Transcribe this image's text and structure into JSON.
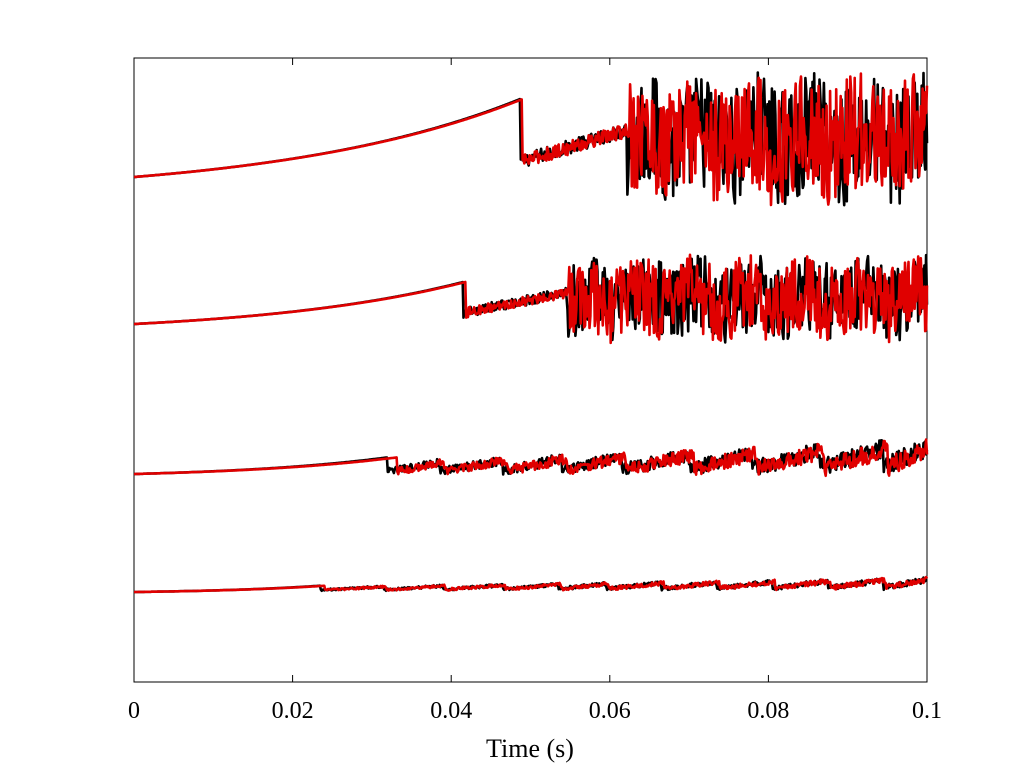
{
  "chart_data": {
    "type": "line",
    "title": "",
    "xlabel": "Time (s)",
    "ylabel": "",
    "xlim": [
      0,
      0.1
    ],
    "xticks": [
      0,
      0.02,
      0.04,
      0.06,
      0.08,
      0.1
    ],
    "xtick_labels": [
      "0",
      "0.02",
      "0.04",
      "0.06",
      "0.08",
      "0.1"
    ],
    "yticks_shown": false,
    "grid": false,
    "legend": null,
    "series_colors": {
      "black": "#000000",
      "red": "#e00000"
    },
    "traces": [
      {
        "baseline": 0,
        "breakdown_time": 0.0487,
        "start_level": 0,
        "peak_level": 1.0,
        "after_jump_level": 0.2,
        "noise_level": 0.5,
        "secondary_jump_time": 0.0622,
        "secondary_level": 0.65,
        "red_black_offset": 0.0003
      },
      {
        "baseline": 0,
        "breakdown_time": 0.0415,
        "start_level": 0,
        "peak_level": 0.75,
        "after_jump_level": 0.2,
        "noise_level": 0.45,
        "secondary_jump_time": 0.0545,
        "secondary_level": 0.6,
        "red_black_offset": 0.0003
      },
      {
        "baseline": 0,
        "breakdown_time": 0.032,
        "start_level": 0,
        "peak_level": 0.45,
        "after_jump_level": 0.15,
        "noise_level": 0.3,
        "sawtooth_jumps": [
          0.0385,
          0.0465,
          0.054,
          0.0615,
          0.07,
          0.078,
          0.0865,
          0.0945
        ],
        "red_black_offset": 0.0012
      },
      {
        "baseline": 0,
        "breakdown_time": 0.0235,
        "start_level": 0,
        "peak_level": 0.3,
        "after_jump_level": 0.18,
        "noise_level": 0.15,
        "sawtooth_jumps": [
          0.0315,
          0.039,
          0.0465,
          0.0535,
          0.0595,
          0.0665,
          0.0735,
          0.0805,
          0.0875,
          0.0945
        ],
        "red_black_offset": 0.0006
      }
    ]
  }
}
